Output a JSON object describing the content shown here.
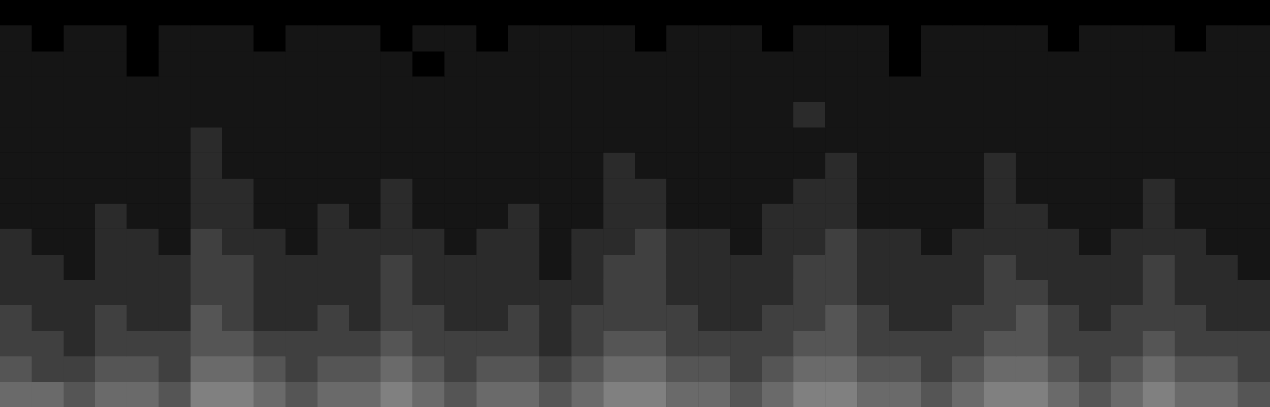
{
  "chart_data": {
    "type": "heatmap",
    "tick_labels": false,
    "grid": false,
    "color_range": [
      0,
      12
    ],
    "cells": [
      [
        5,
        5,
        4,
        5,
        5,
        4,
        6,
        6,
        5,
        4,
        5,
        5,
        6,
        5,
        4,
        5,
        5,
        4,
        5,
        6,
        6,
        5,
        5,
        4,
        5,
        6,
        6,
        5,
        5,
        4,
        5,
        6,
        6,
        5,
        4,
        5,
        6,
        5,
        5,
        4
      ],
      [
        4,
        3,
        3,
        4,
        4,
        3,
        5,
        5,
        4,
        3,
        4,
        4,
        5,
        4,
        3,
        4,
        4,
        3,
        4,
        5,
        5,
        4,
        4,
        3,
        4,
        5,
        5,
        4,
        4,
        3,
        4,
        5,
        5,
        4,
        3,
        4,
        5,
        4,
        4,
        3
      ],
      [
        3,
        3,
        2,
        3,
        3,
        3,
        4,
        4,
        3,
        3,
        3,
        3,
        4,
        3,
        3,
        3,
        3,
        2,
        3,
        4,
        4,
        3,
        3,
        3,
        3,
        4,
        4,
        3,
        3,
        3,
        3,
        4,
        4,
        3,
        3,
        3,
        4,
        3,
        3,
        3
      ],
      [
        3,
        2,
        2,
        3,
        2,
        2,
        4,
        3,
        2,
        2,
        3,
        2,
        3,
        3,
        2,
        2,
        3,
        2,
        3,
        3,
        3,
        3,
        2,
        2,
        3,
        3,
        4,
        3,
        2,
        2,
        3,
        3,
        4,
        3,
        2,
        3,
        3,
        3,
        2,
        2
      ],
      [
        2,
        2,
        2,
        2,
        2,
        2,
        3,
        3,
        2,
        2,
        2,
        2,
        3,
        2,
        2,
        2,
        2,
        2,
        2,
        3,
        3,
        2,
        2,
        2,
        2,
        3,
        3,
        2,
        2,
        2,
        2,
        3,
        3,
        2,
        2,
        2,
        3,
        2,
        2,
        2
      ],
      [
        2,
        2,
        1,
        2,
        2,
        2,
        3,
        3,
        2,
        2,
        2,
        2,
        3,
        2,
        2,
        2,
        2,
        1,
        2,
        3,
        3,
        2,
        2,
        2,
        2,
        3,
        3,
        2,
        2,
        2,
        2,
        3,
        2,
        2,
        2,
        2,
        3,
        2,
        2,
        1
      ],
      [
        2,
        1,
        1,
        2,
        2,
        1,
        3,
        2,
        2,
        1,
        2,
        2,
        2,
        2,
        1,
        2,
        2,
        1,
        2,
        2,
        3,
        2,
        2,
        1,
        2,
        2,
        3,
        2,
        2,
        1,
        2,
        2,
        2,
        2,
        1,
        2,
        2,
        2,
        1,
        1
      ],
      [
        1,
        1,
        1,
        2,
        1,
        1,
        2,
        2,
        1,
        1,
        2,
        1,
        2,
        1,
        1,
        1,
        2,
        1,
        1,
        2,
        2,
        1,
        1,
        1,
        2,
        2,
        2,
        1,
        1,
        1,
        1,
        2,
        2,
        1,
        1,
        1,
        2,
        1,
        1,
        1
      ],
      [
        1,
        1,
        1,
        1,
        1,
        1,
        2,
        2,
        1,
        1,
        1,
        1,
        2,
        1,
        1,
        1,
        1,
        1,
        1,
        2,
        2,
        1,
        1,
        1,
        1,
        2,
        2,
        1,
        1,
        1,
        1,
        2,
        1,
        1,
        1,
        1,
        2,
        1,
        1,
        1
      ],
      [
        1,
        1,
        1,
        1,
        1,
        1,
        2,
        1,
        1,
        1,
        1,
        1,
        1,
        1,
        1,
        1,
        1,
        1,
        1,
        2,
        1,
        1,
        1,
        1,
        1,
        1,
        2,
        1,
        1,
        1,
        1,
        2,
        1,
        1,
        1,
        1,
        1,
        1,
        1,
        1
      ],
      [
        1,
        1,
        1,
        1,
        1,
        1,
        2,
        1,
        1,
        1,
        1,
        1,
        1,
        1,
        1,
        1,
        1,
        1,
        1,
        1,
        1,
        1,
        1,
        1,
        1,
        1,
        1,
        1,
        1,
        1,
        1,
        1,
        1,
        1,
        1,
        1,
        1,
        1,
        1,
        1
      ],
      [
        1,
        1,
        1,
        1,
        1,
        1,
        1,
        1,
        1,
        1,
        1,
        1,
        1,
        1,
        1,
        1,
        1,
        1,
        1,
        1,
        1,
        1,
        1,
        1,
        1,
        2,
        1,
        1,
        1,
        1,
        1,
        1,
        1,
        1,
        1,
        1,
        1,
        1,
        1,
        1
      ],
      [
        1,
        1,
        1,
        1,
        1,
        1,
        1,
        1,
        1,
        1,
        1,
        1,
        1,
        1,
        1,
        1,
        1,
        1,
        1,
        1,
        1,
        1,
        1,
        1,
        1,
        1,
        1,
        1,
        1,
        1,
        1,
        1,
        1,
        1,
        1,
        1,
        1,
        1,
        1,
        1
      ],
      [
        1,
        1,
        1,
        1,
        0,
        1,
        1,
        1,
        1,
        1,
        1,
        1,
        1,
        0,
        1,
        1,
        1,
        1,
        1,
        1,
        1,
        1,
        1,
        1,
        1,
        1,
        1,
        1,
        0,
        1,
        1,
        1,
        1,
        1,
        1,
        1,
        1,
        1,
        1,
        1
      ],
      [
        1,
        0,
        1,
        1,
        0,
        1,
        1,
        1,
        0,
        1,
        1,
        1,
        0,
        1,
        1,
        0,
        1,
        1,
        1,
        1,
        0,
        1,
        1,
        1,
        0,
        1,
        1,
        1,
        0,
        1,
        1,
        1,
        1,
        0,
        1,
        1,
        1,
        0,
        1,
        1
      ],
      [
        0,
        0,
        0,
        0,
        0,
        0,
        0,
        0,
        0,
        0,
        0,
        0,
        0,
        0,
        0,
        0,
        0,
        0,
        0,
        0,
        0,
        0,
        0,
        0,
        0,
        0,
        0,
        0,
        0,
        0,
        0,
        0,
        0,
        0,
        0,
        0,
        0,
        0,
        0,
        0
      ]
    ]
  }
}
